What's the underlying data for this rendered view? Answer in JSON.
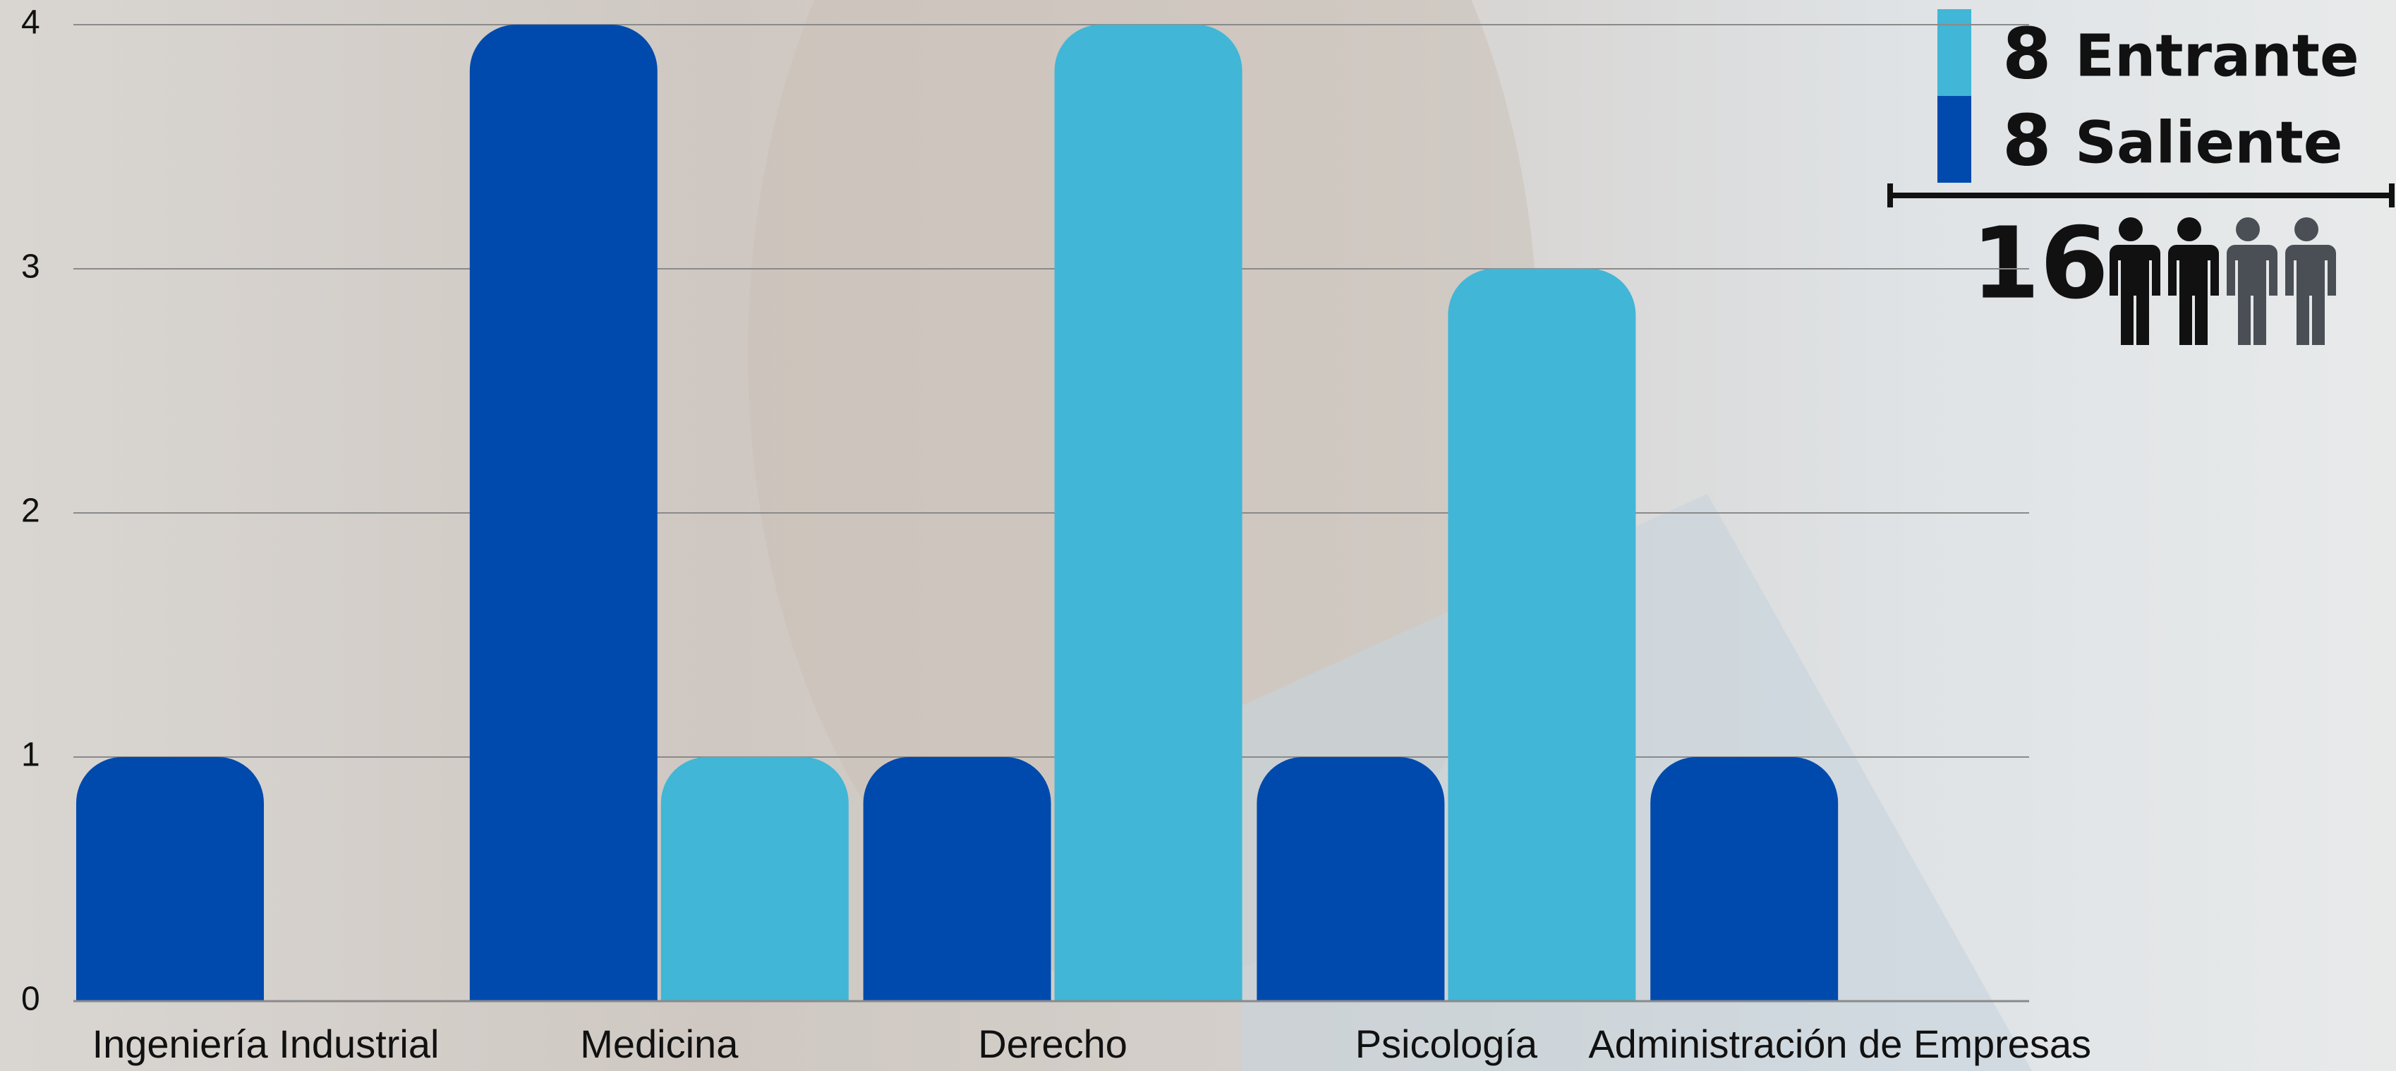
{
  "chart_data": {
    "type": "bar",
    "categories": [
      "Ingeniería Industrial",
      "Medicina",
      "Derecho",
      "Psicología",
      "Administración de Empresas"
    ],
    "series": [
      {
        "name": "Saliente",
        "color": "#004aad",
        "values": [
          1,
          4,
          1,
          1,
          1
        ],
        "total": 8
      },
      {
        "name": "Entrante",
        "color": "#41b6d6",
        "values": [
          0,
          1,
          4,
          3,
          0
        ],
        "total": 8
      }
    ],
    "grand_total": 16,
    "ylim": [
      0,
      4
    ],
    "yticks": [
      0,
      1,
      2,
      3,
      4
    ],
    "grid": true
  }
}
